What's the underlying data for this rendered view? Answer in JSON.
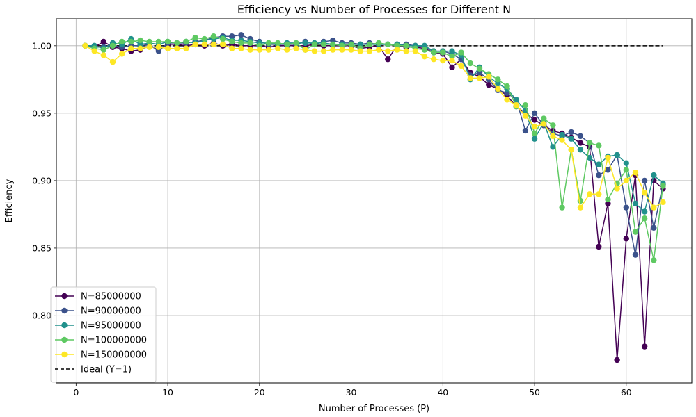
{
  "chart_data": {
    "type": "line",
    "title": "Efficiency vs Number of Processes for Different N",
    "xlabel": "Number of Processes (P)",
    "ylabel": "Efficiency",
    "xlim": [
      -2.15,
      67.15
    ],
    "ylim": [
      0.75,
      1.02
    ],
    "xticks": [
      0,
      10,
      20,
      30,
      40,
      50,
      60
    ],
    "yticks": [
      0.8,
      0.85,
      0.9,
      0.95,
      1.0
    ],
    "ytick_labels": [
      "0.80",
      "0.85",
      "0.90",
      "0.95",
      "1.00"
    ],
    "grid": true,
    "legend_position": "lower-left",
    "x": [
      1,
      2,
      3,
      4,
      5,
      6,
      7,
      8,
      9,
      10,
      11,
      12,
      13,
      14,
      15,
      16,
      17,
      18,
      19,
      20,
      21,
      22,
      23,
      24,
      25,
      26,
      27,
      28,
      29,
      30,
      31,
      32,
      33,
      34,
      35,
      36,
      37,
      38,
      39,
      40,
      41,
      42,
      43,
      44,
      45,
      46,
      47,
      48,
      49,
      50,
      51,
      52,
      53,
      54,
      55,
      56,
      57,
      58,
      59,
      60,
      61,
      62,
      63,
      64
    ],
    "series": [
      {
        "name": "N=85000000",
        "color": "#440154",
        "values": [
          1.0,
          0.999,
          1.003,
          0.999,
          0.998,
          0.996,
          0.997,
          1.0,
          0.997,
          1.001,
          1.001,
          1.0,
          1.001,
          1.0,
          1.002,
          1.0,
          1.001,
          1.0,
          1.0,
          1.0,
          0.999,
          1.0,
          1.0,
          1.0,
          1.0,
          1.001,
          1.0,
          1.0,
          1.0,
          1.0,
          0.998,
          0.999,
          1.0,
          0.99,
          1.0,
          0.999,
          0.999,
          0.998,
          0.995,
          0.994,
          0.984,
          0.99,
          0.98,
          0.977,
          0.971,
          0.968,
          0.963,
          0.955,
          0.95,
          0.945,
          0.941,
          0.937,
          0.935,
          0.932,
          0.928,
          0.925,
          0.851,
          0.883,
          0.767,
          0.857,
          0.904,
          0.777,
          0.9,
          0.894
        ]
      },
      {
        "name": "N=90000000",
        "color": "#3b528b",
        "values": [
          1.0,
          0.999,
          0.999,
          1.0,
          0.999,
          1.0,
          1.0,
          1.001,
          0.996,
          1.002,
          1.002,
          1.002,
          1.003,
          1.004,
          1.006,
          1.007,
          1.007,
          1.008,
          1.005,
          1.003,
          1.001,
          1.001,
          1.001,
          1.001,
          1.003,
          1.001,
          1.003,
          1.004,
          1.002,
          1.002,
          1.001,
          1.002,
          1.001,
          1.001,
          1.001,
          1.001,
          1.0,
          0.999,
          0.996,
          0.996,
          0.994,
          0.99,
          0.978,
          0.98,
          0.975,
          0.967,
          0.965,
          0.96,
          0.937,
          0.95,
          0.941,
          0.935,
          0.933,
          0.936,
          0.933,
          0.928,
          0.904,
          0.908,
          0.919,
          0.88,
          0.845,
          0.9,
          0.865,
          0.897
        ]
      },
      {
        "name": "N=95000000",
        "color": "#21918c",
        "values": [
          1.0,
          1.0,
          0.998,
          1.002,
          1.001,
          1.005,
          1.001,
          1.002,
          1.001,
          1.003,
          1.002,
          1.003,
          1.002,
          1.004,
          1.005,
          1.006,
          1.004,
          1.004,
          1.003,
          1.002,
          1.002,
          1.001,
          1.002,
          1.002,
          1.002,
          1.002,
          1.002,
          1.001,
          1.001,
          1.001,
          1.001,
          1.001,
          1.001,
          1.001,
          1.001,
          1.0,
          1.0,
          1.0,
          0.996,
          0.996,
          0.996,
          0.993,
          0.975,
          0.984,
          0.977,
          0.972,
          0.968,
          0.96,
          0.952,
          0.931,
          0.943,
          0.925,
          0.934,
          0.931,
          0.923,
          0.917,
          0.912,
          0.918,
          0.919,
          0.913,
          0.883,
          0.877,
          0.904,
          0.898
        ]
      },
      {
        "name": "N=100000000",
        "color": "#5ec962",
        "values": [
          1.0,
          0.998,
          0.997,
          1.0,
          1.003,
          1.003,
          1.004,
          1.003,
          1.003,
          1.003,
          1.002,
          1.003,
          1.006,
          1.005,
          1.007,
          1.005,
          1.003,
          1.002,
          1.002,
          1.0,
          1.002,
          1.002,
          1.001,
          1.002,
          0.997,
          1.001,
          1.001,
          1.001,
          1.0,
          1.001,
          0.998,
          1.001,
          1.002,
          1.001,
          1.0,
          1.0,
          0.998,
          0.997,
          0.995,
          0.995,
          0.992,
          0.995,
          0.987,
          0.983,
          0.979,
          0.975,
          0.97,
          0.955,
          0.956,
          0.935,
          0.946,
          0.941,
          0.88,
          0.923,
          0.885,
          0.928,
          0.926,
          0.886,
          0.898,
          0.908,
          0.862,
          0.872,
          0.841,
          0.896
        ]
      },
      {
        "name": "N=150000000",
        "color": "#fde725",
        "values": [
          1.0,
          0.996,
          0.993,
          0.988,
          0.994,
          0.998,
          0.998,
          0.999,
          0.999,
          0.998,
          0.998,
          0.998,
          1.001,
          1.001,
          1.001,
          1.001,
          0.998,
          0.998,
          0.997,
          0.997,
          0.997,
          0.998,
          0.997,
          0.998,
          0.997,
          0.996,
          0.996,
          0.997,
          0.997,
          0.997,
          0.996,
          0.996,
          0.997,
          0.996,
          0.997,
          0.996,
          0.996,
          0.992,
          0.99,
          0.989,
          0.989,
          0.985,
          0.976,
          0.976,
          0.977,
          0.968,
          0.96,
          0.956,
          0.948,
          0.94,
          0.942,
          0.933,
          0.93,
          0.923,
          0.88,
          0.89,
          0.89,
          0.917,
          0.894,
          0.9,
          0.906,
          0.891,
          0.88,
          0.884
        ]
      }
    ],
    "reference_line": {
      "name": "Ideal (Y=1)",
      "color": "#000000",
      "x": [
        1,
        64
      ],
      "y": [
        1.0,
        1.0
      ],
      "style": "dashed"
    }
  }
}
